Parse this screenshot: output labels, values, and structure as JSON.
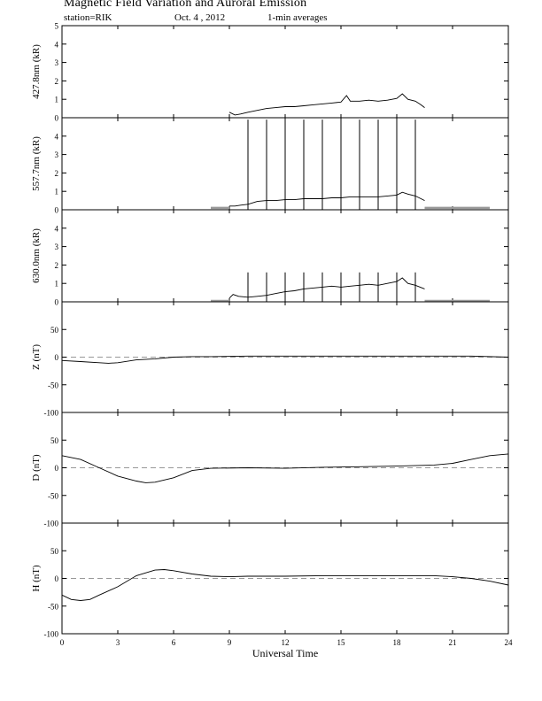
{
  "header": {
    "title": "Magnetic Field Variation and Auroral Emission",
    "station": "station=RIK",
    "date": "Oct. 4  , 2012",
    "averaging": "1-min averages"
  },
  "chart_data": [
    {
      "type": "line",
      "ylabel": "427.8nm (kR)",
      "ylim": [
        0,
        5
      ],
      "yticks": [
        0,
        1,
        2,
        3,
        4,
        5
      ],
      "xlim": [
        0,
        24
      ],
      "grid": false,
      "series": [
        {
          "x": [
            9.0,
            9.3,
            9.6,
            10.0,
            10.5,
            11.0,
            11.5,
            12.0,
            12.5,
            13.0,
            13.5,
            14.0,
            14.5,
            15.0,
            15.3,
            15.5,
            16.0,
            16.5,
            17.0,
            17.5,
            18.0,
            18.3,
            18.6,
            19.0,
            19.3,
            19.5
          ],
          "y": [
            0.3,
            0.15,
            0.2,
            0.3,
            0.4,
            0.5,
            0.55,
            0.6,
            0.6,
            0.65,
            0.7,
            0.75,
            0.8,
            0.85,
            1.2,
            0.9,
            0.9,
            0.95,
            0.9,
            0.95,
            1.05,
            1.3,
            1.0,
            0.9,
            0.7,
            0.55
          ]
        }
      ]
    },
    {
      "type": "line",
      "ylabel": "557.7nm (kR)",
      "ylim": [
        0,
        5
      ],
      "yticks": [
        0,
        1,
        2,
        3,
        4
      ],
      "xlim": [
        0,
        24
      ],
      "grid": false,
      "spikes_x": [
        10,
        11,
        12,
        13,
        14,
        15,
        16,
        17,
        18,
        19
      ],
      "spike_top": 4.9,
      "baseline_segments": [
        [
          8,
          9,
          0.1
        ],
        [
          19.5,
          23,
          0.1
        ]
      ],
      "series": [
        {
          "x": [
            9.0,
            9.3,
            9.6,
            10.0,
            10.5,
            11.0,
            11.5,
            12.0,
            12.5,
            13.0,
            13.5,
            14.0,
            14.5,
            15.0,
            15.5,
            16.0,
            16.5,
            17.0,
            17.5,
            18.0,
            18.3,
            18.6,
            19.0,
            19.3,
            19.5
          ],
          "y": [
            0.2,
            0.2,
            0.25,
            0.3,
            0.45,
            0.5,
            0.5,
            0.55,
            0.55,
            0.6,
            0.6,
            0.6,
            0.65,
            0.65,
            0.7,
            0.7,
            0.7,
            0.7,
            0.75,
            0.8,
            0.95,
            0.85,
            0.75,
            0.6,
            0.5
          ]
        }
      ]
    },
    {
      "type": "line",
      "ylabel": "630.0nm (kR)",
      "ylim": [
        0,
        5
      ],
      "yticks": [
        0,
        1,
        2,
        3,
        4
      ],
      "xlim": [
        0,
        24
      ],
      "grid": false,
      "spikes_x": [
        10,
        11,
        12,
        13,
        14,
        15,
        16,
        17,
        18,
        19
      ],
      "spike_top": 1.6,
      "baseline_segments": [
        [
          8,
          9,
          0.05
        ],
        [
          19.5,
          23,
          0.05
        ]
      ],
      "series": [
        {
          "x": [
            9.0,
            9.2,
            9.5,
            10.0,
            10.5,
            11.0,
            11.5,
            12.0,
            12.5,
            13.0,
            13.5,
            14.0,
            14.5,
            15.0,
            15.5,
            16.0,
            16.5,
            17.0,
            17.5,
            18.0,
            18.3,
            18.6,
            19.0,
            19.5
          ],
          "y": [
            0.2,
            0.4,
            0.3,
            0.25,
            0.3,
            0.35,
            0.45,
            0.55,
            0.6,
            0.7,
            0.75,
            0.8,
            0.85,
            0.8,
            0.85,
            0.9,
            0.95,
            0.9,
            1.0,
            1.1,
            1.3,
            1.0,
            0.9,
            0.7
          ]
        }
      ]
    },
    {
      "type": "line",
      "ylabel": "Z (nT)",
      "ylim": [
        -100,
        100
      ],
      "yticks": [
        -100,
        -50,
        0,
        50
      ],
      "xlim": [
        0,
        24
      ],
      "zero_line": true,
      "grid": false,
      "series": [
        {
          "x": [
            0,
            1,
            2,
            2.5,
            3,
            4,
            5,
            6,
            7,
            8,
            10,
            14,
            18,
            22,
            24
          ],
          "y": [
            -6,
            -8,
            -10,
            -11,
            -10,
            -5,
            -3,
            0,
            1,
            1,
            2,
            2,
            2,
            2,
            0
          ]
        }
      ]
    },
    {
      "type": "line",
      "ylabel": "D (nT)",
      "ylim": [
        -100,
        100
      ],
      "yticks": [
        -100,
        -50,
        0,
        50
      ],
      "xlim": [
        0,
        24
      ],
      "zero_line": true,
      "grid": false,
      "series": [
        {
          "x": [
            0,
            1,
            2,
            3,
            4,
            4.5,
            5,
            6,
            7,
            8,
            10,
            12,
            14,
            16,
            18,
            20,
            21,
            22,
            23,
            24
          ],
          "y": [
            22,
            15,
            0,
            -15,
            -24,
            -27,
            -26,
            -18,
            -5,
            -1,
            0,
            -1,
            1,
            2,
            3,
            5,
            8,
            15,
            22,
            25
          ]
        }
      ]
    },
    {
      "type": "line",
      "ylabel": "H (nT)",
      "ylim": [
        -100,
        100
      ],
      "yticks": [
        -100,
        -50,
        0,
        50
      ],
      "xlim": [
        0,
        24
      ],
      "xticks": [
        0,
        3,
        6,
        9,
        12,
        15,
        18,
        21,
        24
      ],
      "xlabel": "Universal Time",
      "zero_line": true,
      "grid": false,
      "series": [
        {
          "x": [
            0,
            0.5,
            1,
            1.5,
            2,
            3,
            4,
            5,
            5.5,
            6,
            7,
            8,
            9,
            10,
            12,
            14,
            16,
            18,
            20,
            21,
            22,
            23,
            24
          ],
          "y": [
            -30,
            -38,
            -40,
            -38,
            -30,
            -15,
            5,
            15,
            16,
            14,
            8,
            4,
            3,
            4,
            4,
            5,
            5,
            5,
            5,
            3,
            0,
            -5,
            -12
          ]
        }
      ]
    }
  ]
}
